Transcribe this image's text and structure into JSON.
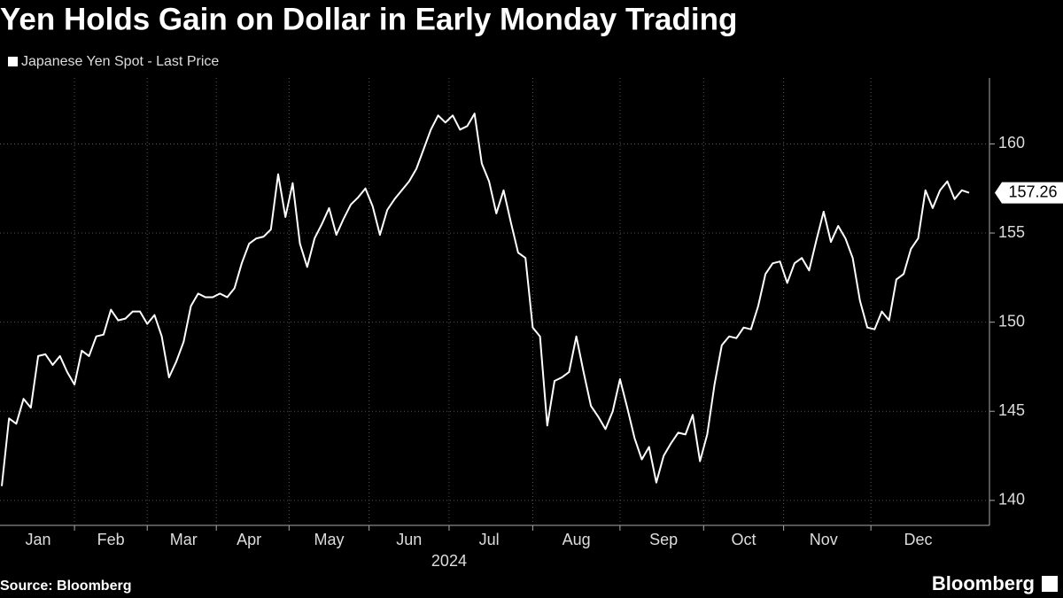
{
  "chart_data": {
    "type": "line",
    "title": "Yen Holds Gain on Dollar in Early Monday Trading",
    "x_label": "2024",
    "source": "Source: Bloomberg",
    "brand": "Bloomberg",
    "categories": [
      null,
      null,
      null,
      null,
      null,
      "Jan",
      null,
      null,
      null,
      null,
      null,
      null,
      null,
      null,
      null,
      "Feb",
      null,
      null,
      null,
      null,
      null,
      null,
      null,
      null,
      null,
      "Mar",
      null,
      null,
      null,
      null,
      null,
      null,
      null,
      null,
      "Apr",
      null,
      null,
      null,
      null,
      null,
      null,
      null,
      null,
      null,
      null,
      "May",
      null,
      null,
      null,
      null,
      null,
      null,
      null,
      null,
      null,
      null,
      "Jun",
      null,
      null,
      null,
      null,
      null,
      null,
      null,
      null,
      null,
      null,
      "Jul",
      null,
      null,
      null,
      null,
      null,
      null,
      null,
      null,
      null,
      null,
      null,
      "Aug",
      null,
      null,
      null,
      null,
      null,
      null,
      null,
      null,
      null,
      null,
      null,
      "Sep",
      null,
      null,
      null,
      null,
      null,
      null,
      null,
      null,
      null,
      null,
      "Oct",
      null,
      null,
      null,
      null,
      null,
      null,
      null,
      null,
      null,
      null,
      "Nov",
      null,
      null,
      null,
      null,
      null,
      null,
      null,
      null,
      null,
      null,
      null,
      null,
      "Dec",
      null,
      null,
      null,
      null,
      null,
      null,
      null
    ],
    "series": [
      {
        "name": "Japanese Yen Spot - Last Price",
        "color": "#ffffff",
        "values": [
          140.8,
          144.6,
          144.3,
          145.7,
          145.2,
          148.1,
          148.2,
          147.6,
          148.1,
          147.2,
          146.5,
          148.4,
          148.1,
          149.2,
          149.3,
          150.7,
          150.1,
          150.2,
          150.6,
          150.6,
          149.9,
          150.4,
          149.2,
          146.9,
          147.8,
          148.9,
          150.9,
          151.6,
          151.4,
          151.4,
          151.6,
          151.4,
          151.9,
          153.3,
          154.4,
          154.7,
          154.8,
          155.2,
          158.3,
          155.9,
          157.8,
          154.4,
          153.1,
          154.7,
          155.5,
          156.4,
          154.9,
          155.8,
          156.6,
          157.0,
          157.5,
          156.5,
          154.9,
          156.3,
          156.9,
          157.4,
          157.9,
          158.6,
          159.7,
          160.8,
          161.6,
          161.2,
          161.6,
          160.8,
          161.0,
          161.7,
          158.9,
          157.9,
          156.1,
          157.4,
          155.6,
          153.9,
          153.6,
          149.7,
          149.2,
          144.2,
          146.7,
          146.9,
          147.2,
          149.2,
          147.2,
          145.3,
          144.7,
          144.0,
          145.0,
          146.8,
          145.2,
          143.5,
          142.3,
          143.0,
          141.0,
          142.5,
          143.2,
          143.8,
          143.7,
          144.8,
          142.2,
          143.7,
          146.5,
          148.7,
          149.2,
          149.1,
          149.7,
          149.6,
          150.9,
          152.7,
          153.3,
          153.4,
          152.2,
          153.3,
          153.6,
          152.9,
          154.6,
          156.2,
          154.5,
          155.4,
          154.7,
          153.6,
          151.2,
          149.7,
          149.6,
          150.6,
          150.1,
          152.4,
          152.7,
          154.1,
          154.7,
          157.4,
          156.4,
          157.4,
          157.9,
          156.9,
          157.4,
          157.26
        ]
      }
    ],
    "ylim": [
      138.6,
      163.7
    ],
    "yticks": [
      140,
      145,
      150,
      155,
      160
    ],
    "grid": true
  }
}
